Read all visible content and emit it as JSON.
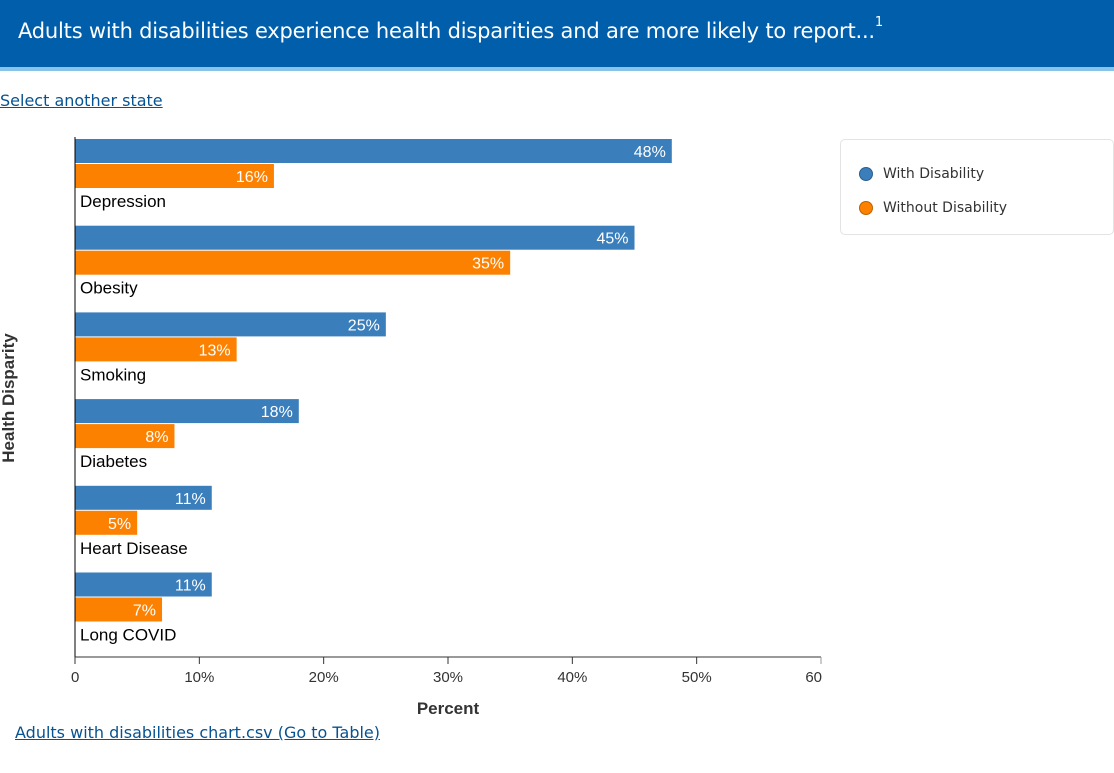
{
  "header": {
    "title": "Adults with disabilities experience health disparities and are more likely to report...",
    "footnote_marker": "1"
  },
  "links": {
    "select_state": "Select another state",
    "csv_table": "Adults with disabilities chart.csv (Go to Table)"
  },
  "legend": {
    "items": [
      {
        "label": "With Disability",
        "color": "#3a7ebb"
      },
      {
        "label": "Without Disability",
        "color": "#fd8101"
      }
    ]
  },
  "colors": {
    "header_bg": "#005eaa",
    "header_border": "#88c3ea",
    "link": "#075290"
  },
  "chart_data": {
    "type": "bar",
    "orientation": "horizontal",
    "title": "",
    "xlabel": "Percent",
    "ylabel": "Health Disparity",
    "xlim": [
      0,
      60
    ],
    "x_ticks": [
      "0",
      "10%",
      "20%",
      "30%",
      "40%",
      "50%",
      "60"
    ],
    "x_tick_values": [
      0,
      10,
      20,
      30,
      40,
      50,
      60
    ],
    "grid": false,
    "legend_position": "top-right",
    "categories": [
      "Depression",
      "Obesity",
      "Smoking",
      "Diabetes",
      "Heart Disease",
      "Long COVID"
    ],
    "series": [
      {
        "name": "With Disability",
        "color": "#3a7ebb",
        "values": [
          48,
          45,
          25,
          18,
          11,
          11
        ],
        "labels": [
          "48%",
          "45%",
          "25%",
          "18%",
          "11%",
          "11%"
        ]
      },
      {
        "name": "Without Disability",
        "color": "#fd8101",
        "values": [
          16,
          35,
          13,
          8,
          5,
          7
        ],
        "labels": [
          "16%",
          "35%",
          "13%",
          "8%",
          "5%",
          "7%"
        ]
      }
    ]
  }
}
